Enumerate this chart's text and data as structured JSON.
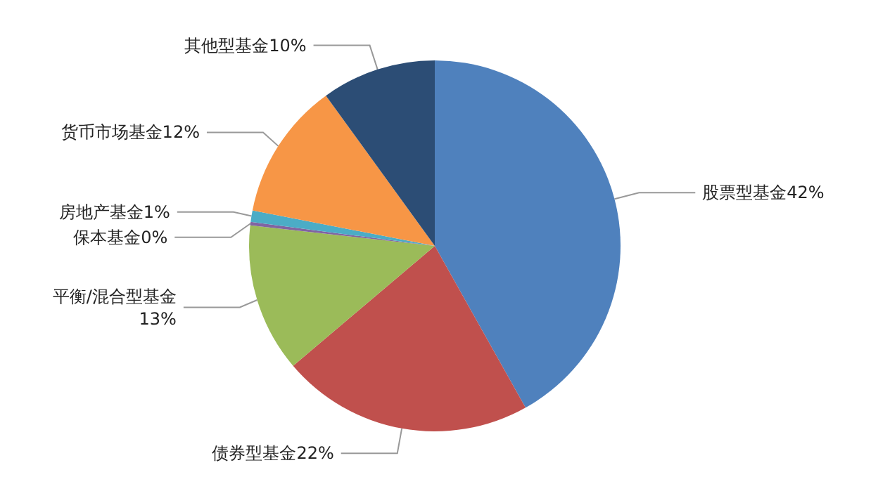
{
  "chart_data": {
    "type": "pie",
    "categories": [
      "股票型基金",
      "债券型基金",
      "平衡/混合型基金",
      "保本基金",
      "房地产基金",
      "货币市场基金",
      "其他型基金"
    ],
    "values": [
      42,
      22,
      13,
      0.3,
      1,
      12,
      10
    ],
    "value_labels": [
      "42%",
      "22%",
      "13%",
      "0%",
      "1%",
      "12%",
      "10%"
    ],
    "colors": [
      "#4f81bd",
      "#c0504d",
      "#9bbb59",
      "#8064a2",
      "#4bacc6",
      "#f79646",
      "#2c4d75"
    ],
    "legend": false
  }
}
